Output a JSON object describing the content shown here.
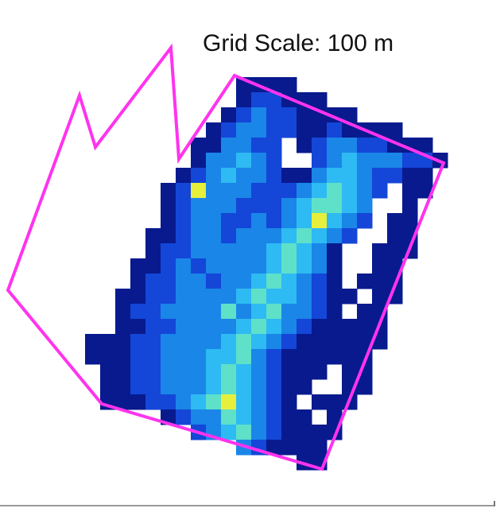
{
  "header": {
    "scale_label": "Grid Scale: 100 m"
  },
  "colormap": [
    "#081a8e",
    "#1446d8",
    "#1a86e8",
    "#2ebaf2",
    "#5fe0c8",
    "#e6ef3c"
  ],
  "grid": {
    "rows": [
      [
        null,
        null,
        null,
        null,
        null,
        null,
        null,
        null,
        null,
        null,
        1,
        1,
        1,
        1
      ],
      [
        null,
        null,
        null,
        null,
        null,
        null,
        null,
        null,
        null,
        null,
        1,
        2,
        2,
        1,
        1,
        1
      ],
      [
        null,
        null,
        null,
        null,
        null,
        null,
        null,
        null,
        null,
        1,
        2,
        3,
        2,
        2,
        1,
        1,
        1,
        1
      ],
      [
        null,
        null,
        null,
        null,
        null,
        null,
        null,
        null,
        1,
        2,
        3,
        3,
        2,
        2,
        1,
        1,
        2,
        1,
        1,
        1,
        1
      ],
      [
        null,
        null,
        null,
        null,
        null,
        null,
        null,
        1,
        1,
        3,
        3,
        2,
        2,
        null,
        1,
        2,
        3,
        3,
        2,
        2,
        1,
        1,
        1
      ],
      [
        null,
        null,
        null,
        null,
        null,
        null,
        null,
        1,
        3,
        3,
        4,
        3,
        2,
        null,
        null,
        2,
        3,
        4,
        3,
        3,
        3,
        2,
        2,
        1
      ],
      [
        null,
        null,
        null,
        null,
        null,
        null,
        1,
        2,
        3,
        4,
        3,
        3,
        2,
        1,
        1,
        3,
        4,
        4,
        3,
        2,
        2,
        1,
        1
      ],
      [
        null,
        null,
        null,
        null,
        null,
        1,
        2,
        6,
        3,
        3,
        3,
        2,
        2,
        2,
        3,
        4,
        5,
        4,
        3,
        2,
        null,
        1,
        1
      ],
      [
        null,
        null,
        null,
        null,
        null,
        1,
        2,
        3,
        3,
        3,
        2,
        2,
        2,
        3,
        4,
        5,
        5,
        4,
        3,
        null,
        null,
        1
      ],
      [
        null,
        null,
        null,
        null,
        null,
        1,
        2,
        3,
        3,
        2,
        2,
        3,
        2,
        3,
        4,
        6,
        4,
        3,
        2,
        null,
        1,
        1
      ],
      [
        null,
        null,
        null,
        null,
        1,
        1,
        2,
        3,
        3,
        2,
        3,
        3,
        3,
        4,
        5,
        4,
        3,
        2,
        null,
        null,
        1,
        1
      ],
      [
        null,
        null,
        null,
        null,
        1,
        2,
        2,
        3,
        3,
        3,
        3,
        3,
        4,
        5,
        4,
        3,
        1,
        null,
        null,
        1,
        1,
        1
      ],
      [
        null,
        null,
        null,
        1,
        1,
        2,
        3,
        2,
        3,
        3,
        3,
        3,
        4,
        5,
        4,
        3,
        1,
        null,
        null,
        1,
        1
      ],
      [
        null,
        null,
        null,
        1,
        2,
        2,
        3,
        3,
        2,
        3,
        3,
        4,
        5,
        4,
        3,
        2,
        1,
        null,
        1,
        1,
        1
      ],
      [
        null,
        null,
        1,
        1,
        2,
        2,
        3,
        3,
        3,
        3,
        4,
        5,
        4,
        4,
        3,
        2,
        1,
        1,
        null,
        1,
        1
      ],
      [
        null,
        null,
        1,
        2,
        2,
        3,
        3,
        3,
        3,
        5,
        3,
        4,
        5,
        3,
        3,
        2,
        1,
        null,
        1,
        1
      ],
      [
        null,
        null,
        1,
        1,
        2,
        2,
        3,
        3,
        3,
        3,
        4,
        5,
        4,
        3,
        2,
        1,
        1,
        1,
        1,
        1
      ],
      [
        1,
        1,
        1,
        2,
        2,
        3,
        3,
        3,
        3,
        4,
        5,
        4,
        3,
        2,
        1,
        1,
        1,
        1,
        1,
        1
      ],
      [
        1,
        1,
        1,
        2,
        2,
        3,
        3,
        3,
        4,
        4,
        5,
        3,
        2,
        1,
        1,
        1,
        1,
        1,
        1
      ],
      [
        null,
        1,
        1,
        2,
        2,
        3,
        3,
        3,
        4,
        5,
        4,
        3,
        2,
        1,
        1,
        1,
        null,
        1,
        1
      ],
      [
        null,
        1,
        1,
        2,
        2,
        3,
        3,
        3,
        4,
        5,
        4,
        3,
        2,
        1,
        1,
        null,
        null,
        1,
        1
      ],
      [
        null,
        1,
        1,
        1,
        2,
        2,
        3,
        4,
        5,
        6,
        4,
        3,
        2,
        1,
        null,
        1,
        1,
        1
      ],
      [
        null,
        null,
        null,
        null,
        null,
        1,
        2,
        3,
        3,
        5,
        4,
        3,
        2,
        1,
        1,
        null,
        1
      ],
      [
        null,
        null,
        null,
        null,
        null,
        null,
        null,
        2,
        3,
        4,
        5,
        3,
        2,
        1,
        1,
        1,
        1
      ],
      [
        null,
        null,
        null,
        null,
        null,
        null,
        null,
        null,
        null,
        null,
        3,
        2,
        1,
        1,
        1,
        1
      ],
      [
        null,
        null,
        null,
        null,
        null,
        null,
        null,
        null,
        null,
        null,
        null,
        null,
        null,
        null,
        1,
        1
      ]
    ]
  }
}
